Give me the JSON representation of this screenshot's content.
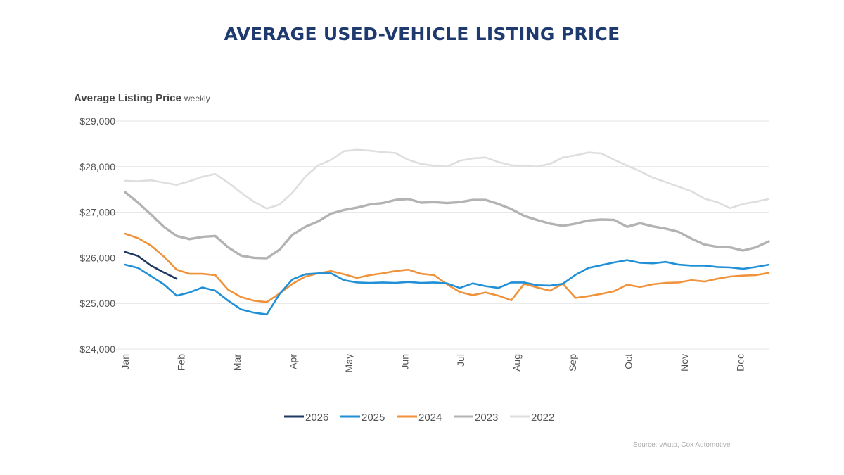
{
  "chart_data": {
    "type": "line",
    "title": "AVERAGE USED-VEHICLE LISTING PRICE",
    "ylabel": "Average Listing Price",
    "ylabel_note": "weekly",
    "source": "Source: vAuto, Cox Automotive",
    "x_tick_labels": [
      "Jan",
      "Feb",
      "Mar",
      "Apr",
      "May",
      "Jun",
      "Jul",
      "Aug",
      "Sep",
      "Oct",
      "Nov",
      "Dec"
    ],
    "y_tick_labels": [
      "$24,000",
      "$25,000",
      "$26,000",
      "$27,000",
      "$28,000",
      "$29,000"
    ],
    "y_ticks": [
      24000,
      25000,
      26000,
      27000,
      28000,
      29000
    ],
    "ylim": [
      24000,
      29000
    ],
    "x_unit": "week of year",
    "grid": "horizontal",
    "legend_position": "bottom",
    "series": [
      {
        "name": "2026",
        "color": "#1f3864",
        "values": [
          26130,
          26040,
          25830,
          25680,
          25540
        ]
      },
      {
        "name": "2025",
        "color": "#1f8fd6",
        "values": [
          25850,
          25780,
          25600,
          25420,
          25170,
          25240,
          25350,
          25280,
          25060,
          24870,
          24800,
          24760,
          25210,
          25530,
          25640,
          25660,
          25660,
          25510,
          25460,
          25450,
          25460,
          25450,
          25470,
          25450,
          25460,
          25440,
          25340,
          25440,
          25380,
          25340,
          25460,
          25460,
          25400,
          25390,
          25430,
          25630,
          25780,
          25840,
          25900,
          25950,
          25890,
          25880,
          25910,
          25850,
          25830,
          25830,
          25800,
          25790,
          25760,
          25800,
          25850
        ]
      },
      {
        "name": "2024",
        "color": "#f0923a",
        "values": [
          26530,
          26430,
          26270,
          26030,
          25740,
          25650,
          25650,
          25620,
          25300,
          25140,
          25060,
          25030,
          25220,
          25430,
          25590,
          25660,
          25710,
          25640,
          25560,
          25620,
          25660,
          25710,
          25740,
          25650,
          25620,
          25420,
          25250,
          25180,
          25240,
          25170,
          25070,
          25430,
          25350,
          25280,
          25430,
          25120,
          25160,
          25210,
          25270,
          25410,
          25360,
          25420,
          25450,
          25460,
          25510,
          25480,
          25540,
          25590,
          25610,
          25620,
          25670
        ]
      },
      {
        "name": "2023",
        "color": "#b3b3b3",
        "values": [
          27440,
          27210,
          26950,
          26680,
          26480,
          26410,
          26460,
          26480,
          26230,
          26050,
          26000,
          25990,
          26180,
          26510,
          26680,
          26800,
          26970,
          27050,
          27100,
          27170,
          27200,
          27270,
          27290,
          27210,
          27220,
          27200,
          27220,
          27270,
          27270,
          27180,
          27070,
          26920,
          26830,
          26750,
          26700,
          26750,
          26820,
          26840,
          26830,
          26680,
          26760,
          26690,
          26640,
          26570,
          26420,
          26290,
          26240,
          26230,
          26160,
          26230,
          26360
        ]
      },
      {
        "name": "2022",
        "color": "#dedede",
        "values": [
          27690,
          27680,
          27700,
          27650,
          27600,
          27680,
          27780,
          27840,
          27650,
          27430,
          27230,
          27080,
          27170,
          27430,
          27780,
          28030,
          28150,
          28340,
          28370,
          28350,
          28320,
          28300,
          28150,
          28060,
          28020,
          28000,
          28130,
          28180,
          28200,
          28100,
          28030,
          28020,
          28000,
          28060,
          28200,
          28250,
          28310,
          28290,
          28150,
          28020,
          27900,
          27760,
          27660,
          27560,
          27460,
          27300,
          27220,
          27090,
          27180,
          27230,
          27290
        ]
      }
    ]
  }
}
